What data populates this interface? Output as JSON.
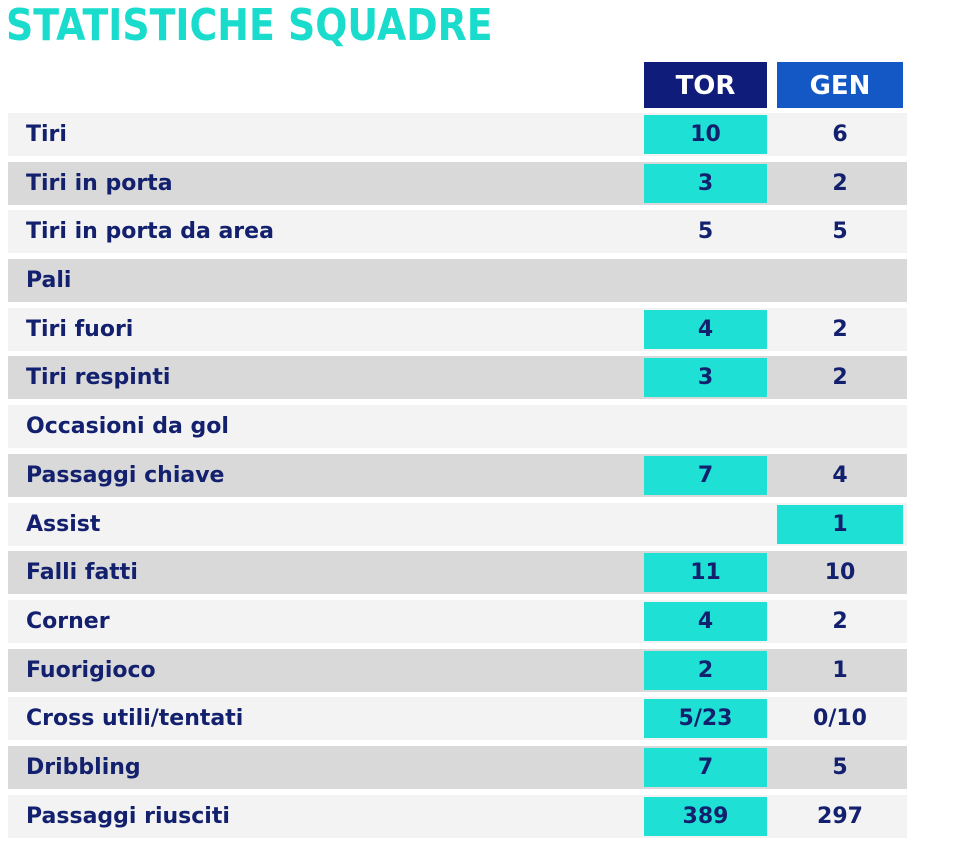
{
  "title": "STATISTICHE SQUADRE",
  "teams": {
    "home": "TOR",
    "away": "GEN"
  },
  "colors": {
    "title": "#19dccd",
    "home_header": "#101c7a",
    "away_header": "#1358c4",
    "highlight": "#1ee0d4",
    "text": "#13206e"
  },
  "stats": [
    {
      "label": "Tiri",
      "home": "10",
      "away": "6",
      "leader": "home"
    },
    {
      "label": "Tiri in porta",
      "home": "3",
      "away": "2",
      "leader": "home"
    },
    {
      "label": "Tiri in porta da area",
      "home": "5",
      "away": "5",
      "leader": ""
    },
    {
      "label": "Pali",
      "home": "",
      "away": "",
      "leader": ""
    },
    {
      "label": "Tiri fuori",
      "home": "4",
      "away": "2",
      "leader": "home"
    },
    {
      "label": "Tiri respinti",
      "home": "3",
      "away": "2",
      "leader": "home"
    },
    {
      "label": "Occasioni da gol",
      "home": "",
      "away": "",
      "leader": ""
    },
    {
      "label": "Passaggi chiave",
      "home": "7",
      "away": "4",
      "leader": "home"
    },
    {
      "label": "Assist",
      "home": "",
      "away": "1",
      "leader": "away"
    },
    {
      "label": "Falli fatti",
      "home": "11",
      "away": "10",
      "leader": "home"
    },
    {
      "label": "Corner",
      "home": "4",
      "away": "2",
      "leader": "home"
    },
    {
      "label": "Fuorigioco",
      "home": "2",
      "away": "1",
      "leader": "home"
    },
    {
      "label": "Cross utili/tentati",
      "home": "5/23",
      "away": "0/10",
      "leader": "home"
    },
    {
      "label": "Dribbling",
      "home": "7",
      "away": "5",
      "leader": "home"
    },
    {
      "label": "Passaggi riusciti",
      "home": "389",
      "away": "297",
      "leader": "home"
    }
  ]
}
